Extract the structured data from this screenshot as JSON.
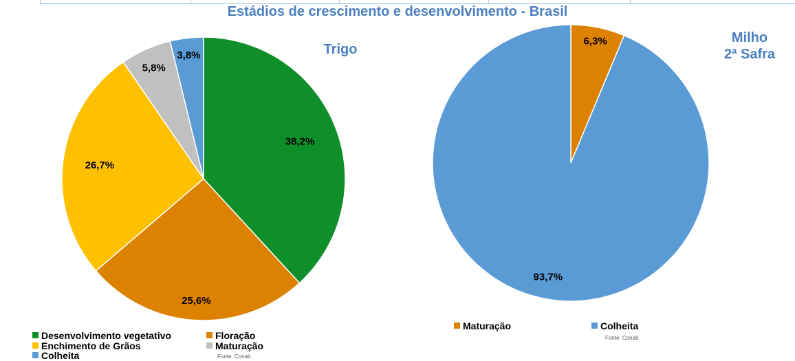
{
  "header": {
    "title": "Estádios de crescimento e desenvolvimento - Brasil"
  },
  "colors": {
    "desenvolvimento_vegetativo": "#0e8f29",
    "floracao": "#dc8100",
    "enchimento_de_graos": "#ffc000",
    "maturacao_trigo": "#c0c0c0",
    "colheita": "#5b9bd5",
    "maturacao_milho": "#dc8100",
    "title": "#4a7fc1"
  },
  "chart_data": [
    {
      "type": "pie",
      "title": "Trigo",
      "categories": [
        "Desenvolvimento vegetativo",
        "Floração",
        "Enchimento de Grãos",
        "Maturação",
        "Colheita"
      ],
      "values": [
        38.2,
        25.6,
        26.7,
        5.8,
        3.8
      ],
      "labels": [
        "38,2%",
        "25,6%",
        "26,7%",
        "5,8%",
        "3,8%"
      ],
      "legend_position": "bottom",
      "source": "Fonte: Conab"
    },
    {
      "type": "pie",
      "title_lines": [
        "Milho",
        "2ª Safra"
      ],
      "categories": [
        "Maturação",
        "Colheita"
      ],
      "values": [
        6.3,
        93.7
      ],
      "labels": [
        "6,3%",
        "93,7%"
      ],
      "legend_position": "bottom",
      "source": "Fonte: Conab"
    }
  ]
}
